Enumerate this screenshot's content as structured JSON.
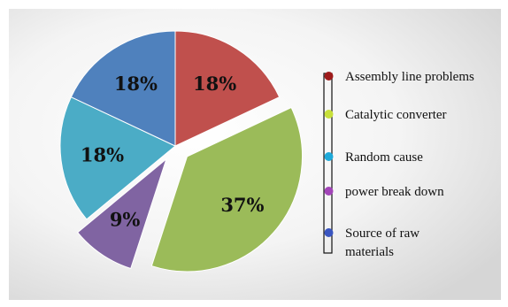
{
  "chart_data": {
    "type": "pie",
    "exploded": true,
    "start": "12 o'clock, clockwise",
    "legend_position": "right",
    "slices": [
      {
        "name": "Assembly line problems",
        "value": 18,
        "label": "18%",
        "color": "#c0504d",
        "exploded": false
      },
      {
        "name": "Catalytic converter",
        "value": 37,
        "label": "37%",
        "color": "#9bbb59",
        "exploded": true
      },
      {
        "name": "power break down",
        "value": 9,
        "label": "9%",
        "color": "#8064a2",
        "exploded": true
      },
      {
        "name": "Random cause",
        "value": 18,
        "label": "18%",
        "color": "#4bacc6",
        "exploded": false
      },
      {
        "name": "Source of raw materials",
        "value": 18,
        "label": "18%",
        "color": "#4f81bd",
        "exploded": false
      }
    ],
    "legend": [
      {
        "lines": [
          "Assembly line problems"
        ],
        "color": "#9e1b1b"
      },
      {
        "lines": [
          "Catalytic converter"
        ],
        "color": "#c8e03a"
      },
      {
        "lines": [
          "Random cause"
        ],
        "color": "#1ea9d9"
      },
      {
        "lines": [
          "power break down"
        ],
        "color": "#a245b8"
      },
      {
        "lines": [
          "Source of raw",
          "materials"
        ],
        "color": "#3a55c0"
      }
    ]
  }
}
